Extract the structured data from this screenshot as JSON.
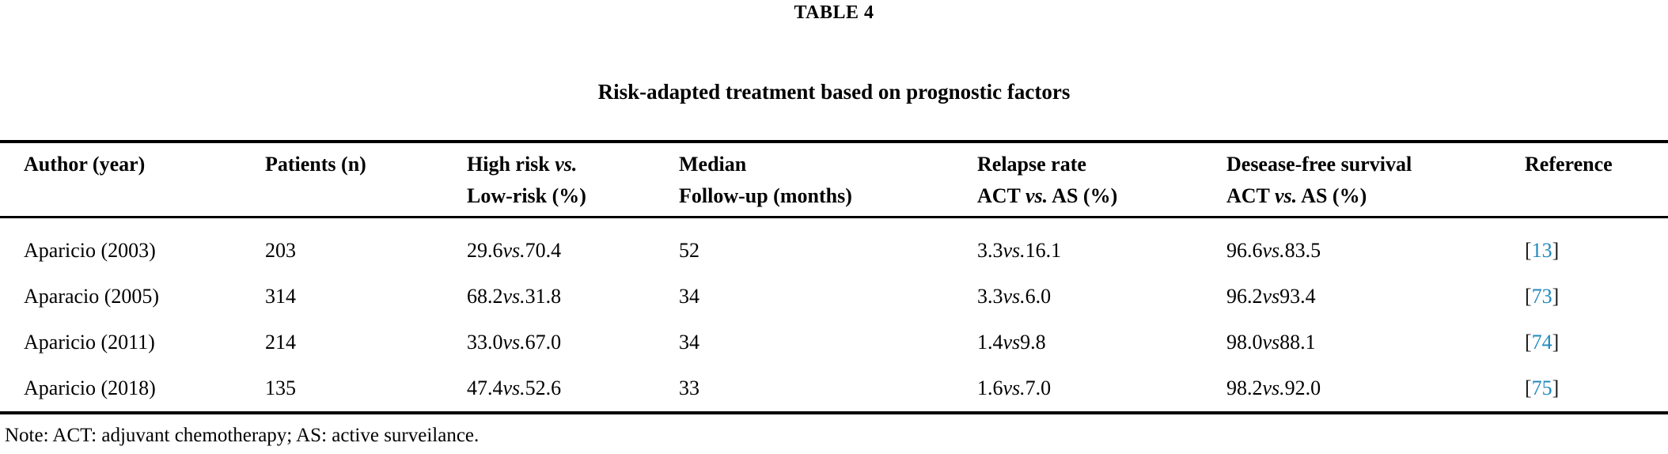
{
  "page": {
    "title": "TABLE 4",
    "subtitle": "Risk-adapted treatment based on prognostic factors",
    "note": "Note: ACT: adjuvant chemotherapy; AS: active surveilance."
  },
  "colors": {
    "text": "#000000",
    "citation_blue": "#2089be",
    "rule": "#000000",
    "background": "#ffffff"
  },
  "table": {
    "columns": [
      {
        "key": "author",
        "line1": "Author (year)",
        "line2": ""
      },
      {
        "key": "patients",
        "line1": "Patients (n)",
        "line2": ""
      },
      {
        "key": "risk",
        "line1": "High risk vs.",
        "line2": "Low-risk (%)"
      },
      {
        "key": "followup",
        "line1": "Median",
        "line2": "Follow-up (months)"
      },
      {
        "key": "relapse",
        "line1": "Relapse rate",
        "line2": "ACT vs. AS (%)"
      },
      {
        "key": "dfs",
        "line1": "Desease-free survival",
        "line2": "ACT vs. AS (%)"
      },
      {
        "key": "reference",
        "line1": "Reference",
        "line2": ""
      }
    ],
    "rows": [
      {
        "author": "Aparicio (2003)",
        "patients": "203",
        "risk": "29.6 vs. 70.4",
        "followup": "52",
        "relapse": "3.3 vs. 16.1",
        "dfs": "96.6 vs. 83.5",
        "reference": "[13]"
      },
      {
        "author": "Aparacio (2005)",
        "patients": "314",
        "risk": "68.2 vs. 31.8",
        "followup": "34",
        "relapse": "3.3 vs. 6.0",
        "dfs": "96.2 vs 93.4",
        "reference": "[73]"
      },
      {
        "author": "Aparicio (2011)",
        "patients": "214",
        "risk": "33.0 vs. 67.0",
        "followup": "34",
        "relapse": "1.4 vs 9.8",
        "dfs": "98.0 vs 88.1",
        "reference": "[74]"
      },
      {
        "author": "Aparicio (2018)",
        "patients": "135",
        "risk": "47.4 vs. 52.6",
        "followup": "33",
        "relapse": "1.6 vs. 7.0",
        "dfs": "98.2 vs. 92.0",
        "reference": "[75]"
      }
    ]
  }
}
